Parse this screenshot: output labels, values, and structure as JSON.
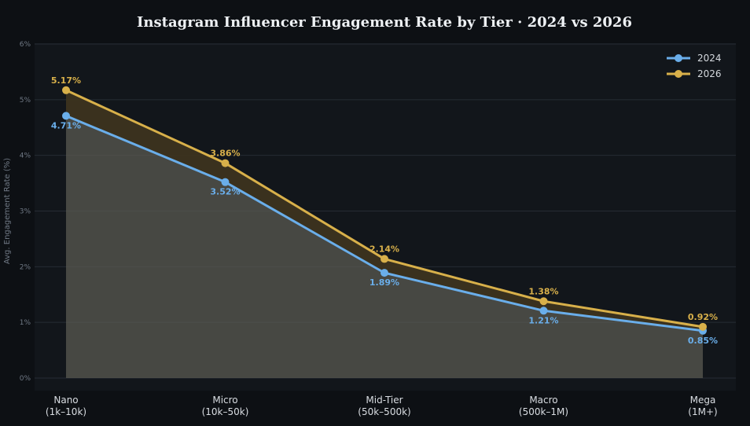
{
  "chart_data": {
    "type": "line",
    "title": "Instagram Influencer Engagement Rate by Tier  ·  2024 vs 2026",
    "xlabel": "",
    "ylabel": "Avg. Engagement Rate (%)",
    "ylim": [
      0,
      6
    ],
    "yticks": [
      "0%",
      "1%",
      "2%",
      "3%",
      "4%",
      "5%",
      "6%"
    ],
    "categories": [
      [
        "Nano",
        "(1k–10k)"
      ],
      [
        "Micro",
        "(10k–50k)"
      ],
      [
        "Mid-Tier",
        "(50k–500k)"
      ],
      [
        "Macro",
        "(500k–1M)"
      ],
      [
        "Mega",
        "(1M+)"
      ]
    ],
    "series": [
      {
        "name": "2024",
        "color": "#6aaeea",
        "values": [
          4.71,
          3.52,
          1.89,
          1.21,
          0.85
        ],
        "labels": [
          "4.71%",
          "3.52%",
          "1.89%",
          "1.21%",
          "0.85%"
        ]
      },
      {
        "name": "2026",
        "color": "#d8b04a",
        "values": [
          5.17,
          3.86,
          2.14,
          1.38,
          0.92
        ],
        "labels": [
          "5.17%",
          "3.86%",
          "2.14%",
          "1.38%",
          "0.92%"
        ]
      }
    ],
    "grid": true,
    "legend": "top-right"
  }
}
